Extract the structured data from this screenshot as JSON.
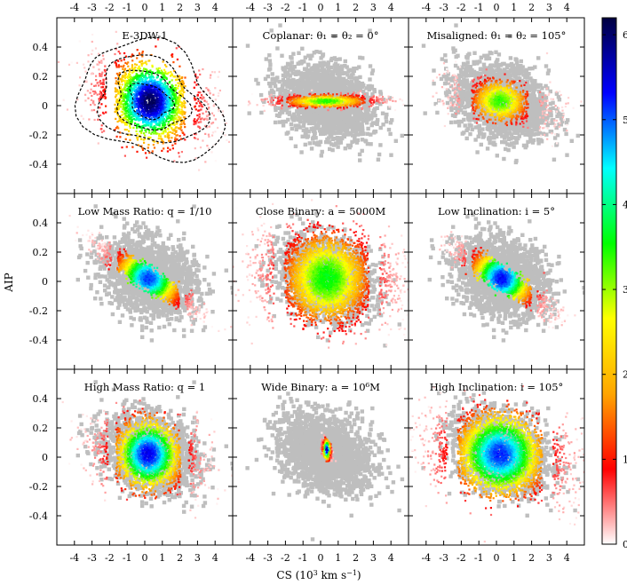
{
  "chart_data": {
    "type": "heatmap",
    "layout": {
      "rows": 3,
      "cols": 3
    },
    "xlabel_parts": {
      "prefix": "CS (10",
      "exponent": "3",
      "suffix": " km s",
      "suffix_exponent": "−1",
      "close": ")"
    },
    "ylabel": "AIP",
    "xlim": [
      -5,
      5
    ],
    "ylim": [
      -0.6,
      0.6
    ],
    "xticks": [
      -4,
      -3,
      -2,
      -1,
      0,
      1,
      2,
      3,
      4
    ],
    "xtick_labels": [
      "-4",
      "-3",
      "-2",
      "-1",
      "0",
      "1",
      "2",
      "3",
      "4"
    ],
    "yticks": [
      -0.4,
      -0.2,
      0,
      0.2,
      0.4
    ],
    "ytick_labels": [
      "-0.4",
      "-0.2",
      "0",
      "0.2",
      "0.4"
    ],
    "colorbar": {
      "range": [
        0,
        6.2
      ],
      "ticks": [
        0,
        1,
        2,
        3,
        4,
        5,
        6
      ],
      "tick_labels": [
        "0",
        "1",
        "2",
        "3",
        "4",
        "5",
        "6"
      ],
      "colors": [
        "#ffffff",
        "#ff0000",
        "#ffa500",
        "#ffff00",
        "#00ff00",
        "#00ffff",
        "#0000ff",
        "#000040"
      ]
    },
    "background_color": "#bebebe",
    "contour_color": "#000000",
    "panels": [
      {
        "title": "E-3DW-1",
        "show_background": false,
        "show_contours": true,
        "density": {
          "center": [
            0.3,
            0.03
          ],
          "sx": 1.25,
          "sy": 0.125,
          "rho": -0.25,
          "peak": 6.0,
          "extent": 2.5
        },
        "contour_levels": [
          1.0,
          1.7,
          2.5,
          3.4
        ]
      },
      {
        "title": "Coplanar: θ₁ = θ₂ = 0°",
        "show_background": true,
        "show_contours": false,
        "density": {
          "center": [
            0.3,
            0.03
          ],
          "sx": 1.4,
          "sy": 0.02,
          "rho": 0.1,
          "peak": 3.4,
          "extent": 2.2
        }
      },
      {
        "title": "Misaligned: θ₁ = θ₂ = 105°",
        "show_background": true,
        "show_contours": false,
        "density": {
          "center": [
            0.2,
            0.03
          ],
          "sx": 1.0,
          "sy": 0.07,
          "rho": -0.35,
          "peak": 3.3,
          "extent": 2.8
        }
      },
      {
        "title": "Low Mass Ratio: q = 1/10",
        "show_background": true,
        "show_contours": false,
        "density": {
          "center": [
            0.2,
            0.02
          ],
          "sx": 1.1,
          "sy": 0.09,
          "rho": -0.9,
          "peak": 5.0,
          "extent": 2.4
        }
      },
      {
        "title": "Close Binary: a = 5000M",
        "show_background": true,
        "show_contours": false,
        "density": {
          "center": [
            0.35,
            0.02
          ],
          "sx": 1.5,
          "sy": 0.14,
          "rho": -0.1,
          "peak": 3.5,
          "extent": 2.5
        }
      },
      {
        "title": "Low Inclination: i = 5°",
        "show_background": true,
        "show_contours": false,
        "density": {
          "center": [
            0.3,
            0.02
          ],
          "sx": 1.05,
          "sy": 0.09,
          "rho": -0.88,
          "peak": 5.2,
          "extent": 2.4
        }
      },
      {
        "title": "High Mass Ratio: q = 1",
        "show_background": true,
        "show_contours": false,
        "density": {
          "center": [
            0.2,
            0.02
          ],
          "sx": 1.15,
          "sy": 0.11,
          "rho": -0.15,
          "peak": 5.3,
          "extent": 2.5
        }
      },
      {
        "title": "Wide Binary: a = 10⁶M",
        "show_background": true,
        "show_contours": false,
        "density": {
          "center": [
            0.35,
            0.05
          ],
          "sx": 0.12,
          "sy": 0.03,
          "rho": -0.4,
          "peak": 5.6,
          "extent": 2.0
        }
      },
      {
        "title": "High Inclination: i = 105°",
        "show_background": true,
        "show_contours": false,
        "density": {
          "center": [
            0.2,
            0.02
          ],
          "sx": 1.5,
          "sy": 0.13,
          "rho": -0.2,
          "peak": 5.1,
          "extent": 2.5
        }
      }
    ]
  }
}
